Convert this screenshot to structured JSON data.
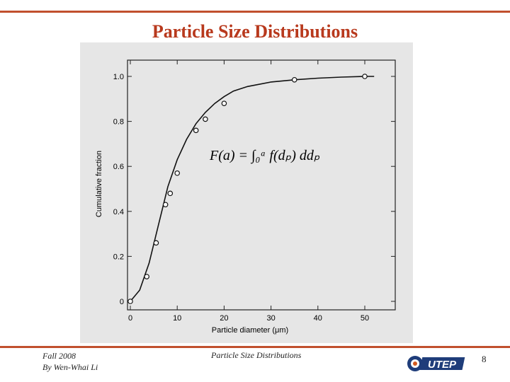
{
  "slide": {
    "title": "Particle Size Distributions",
    "footer_left_line1": "Fall 2008",
    "footer_left_line2": "By Wen-Whai Li",
    "footer_center": "Particle Size Distributions",
    "page_number": "8",
    "logo_text": "UTEP"
  },
  "colors": {
    "accent": "#c1502e",
    "title": "#b8391d"
  },
  "chart_data": {
    "type": "line",
    "xlabel": "Particle diameter (μm)",
    "ylabel": "Cumulative fraction",
    "xlim": [
      0,
      55
    ],
    "ylim": [
      0,
      1.0
    ],
    "x_ticks": [
      "0",
      "10",
      "20",
      "30",
      "40",
      "50"
    ],
    "y_ticks": [
      "0",
      "0.2",
      "0.4",
      "0.6",
      "0.8",
      "1.0"
    ],
    "formula": "F(a) = ∫₀ᵃ f(dₚ) ddₚ",
    "series": [
      {
        "x": [
          0,
          2,
          4,
          6,
          8,
          10,
          12,
          14,
          16,
          18,
          20,
          22,
          25,
          30,
          35,
          40,
          45,
          50,
          52
        ],
        "y": [
          0,
          0.05,
          0.17,
          0.34,
          0.51,
          0.63,
          0.72,
          0.79,
          0.84,
          0.88,
          0.91,
          0.935,
          0.955,
          0.975,
          0.985,
          0.992,
          0.997,
          1.0,
          1.0
        ],
        "markers_x": [
          0,
          3.5,
          5.5,
          7.5,
          8.5,
          10,
          14,
          16,
          20,
          35,
          50
        ],
        "markers_y": [
          0,
          0.11,
          0.26,
          0.43,
          0.48,
          0.57,
          0.76,
          0.81,
          0.88,
          0.985,
          1.0
        ]
      }
    ]
  }
}
